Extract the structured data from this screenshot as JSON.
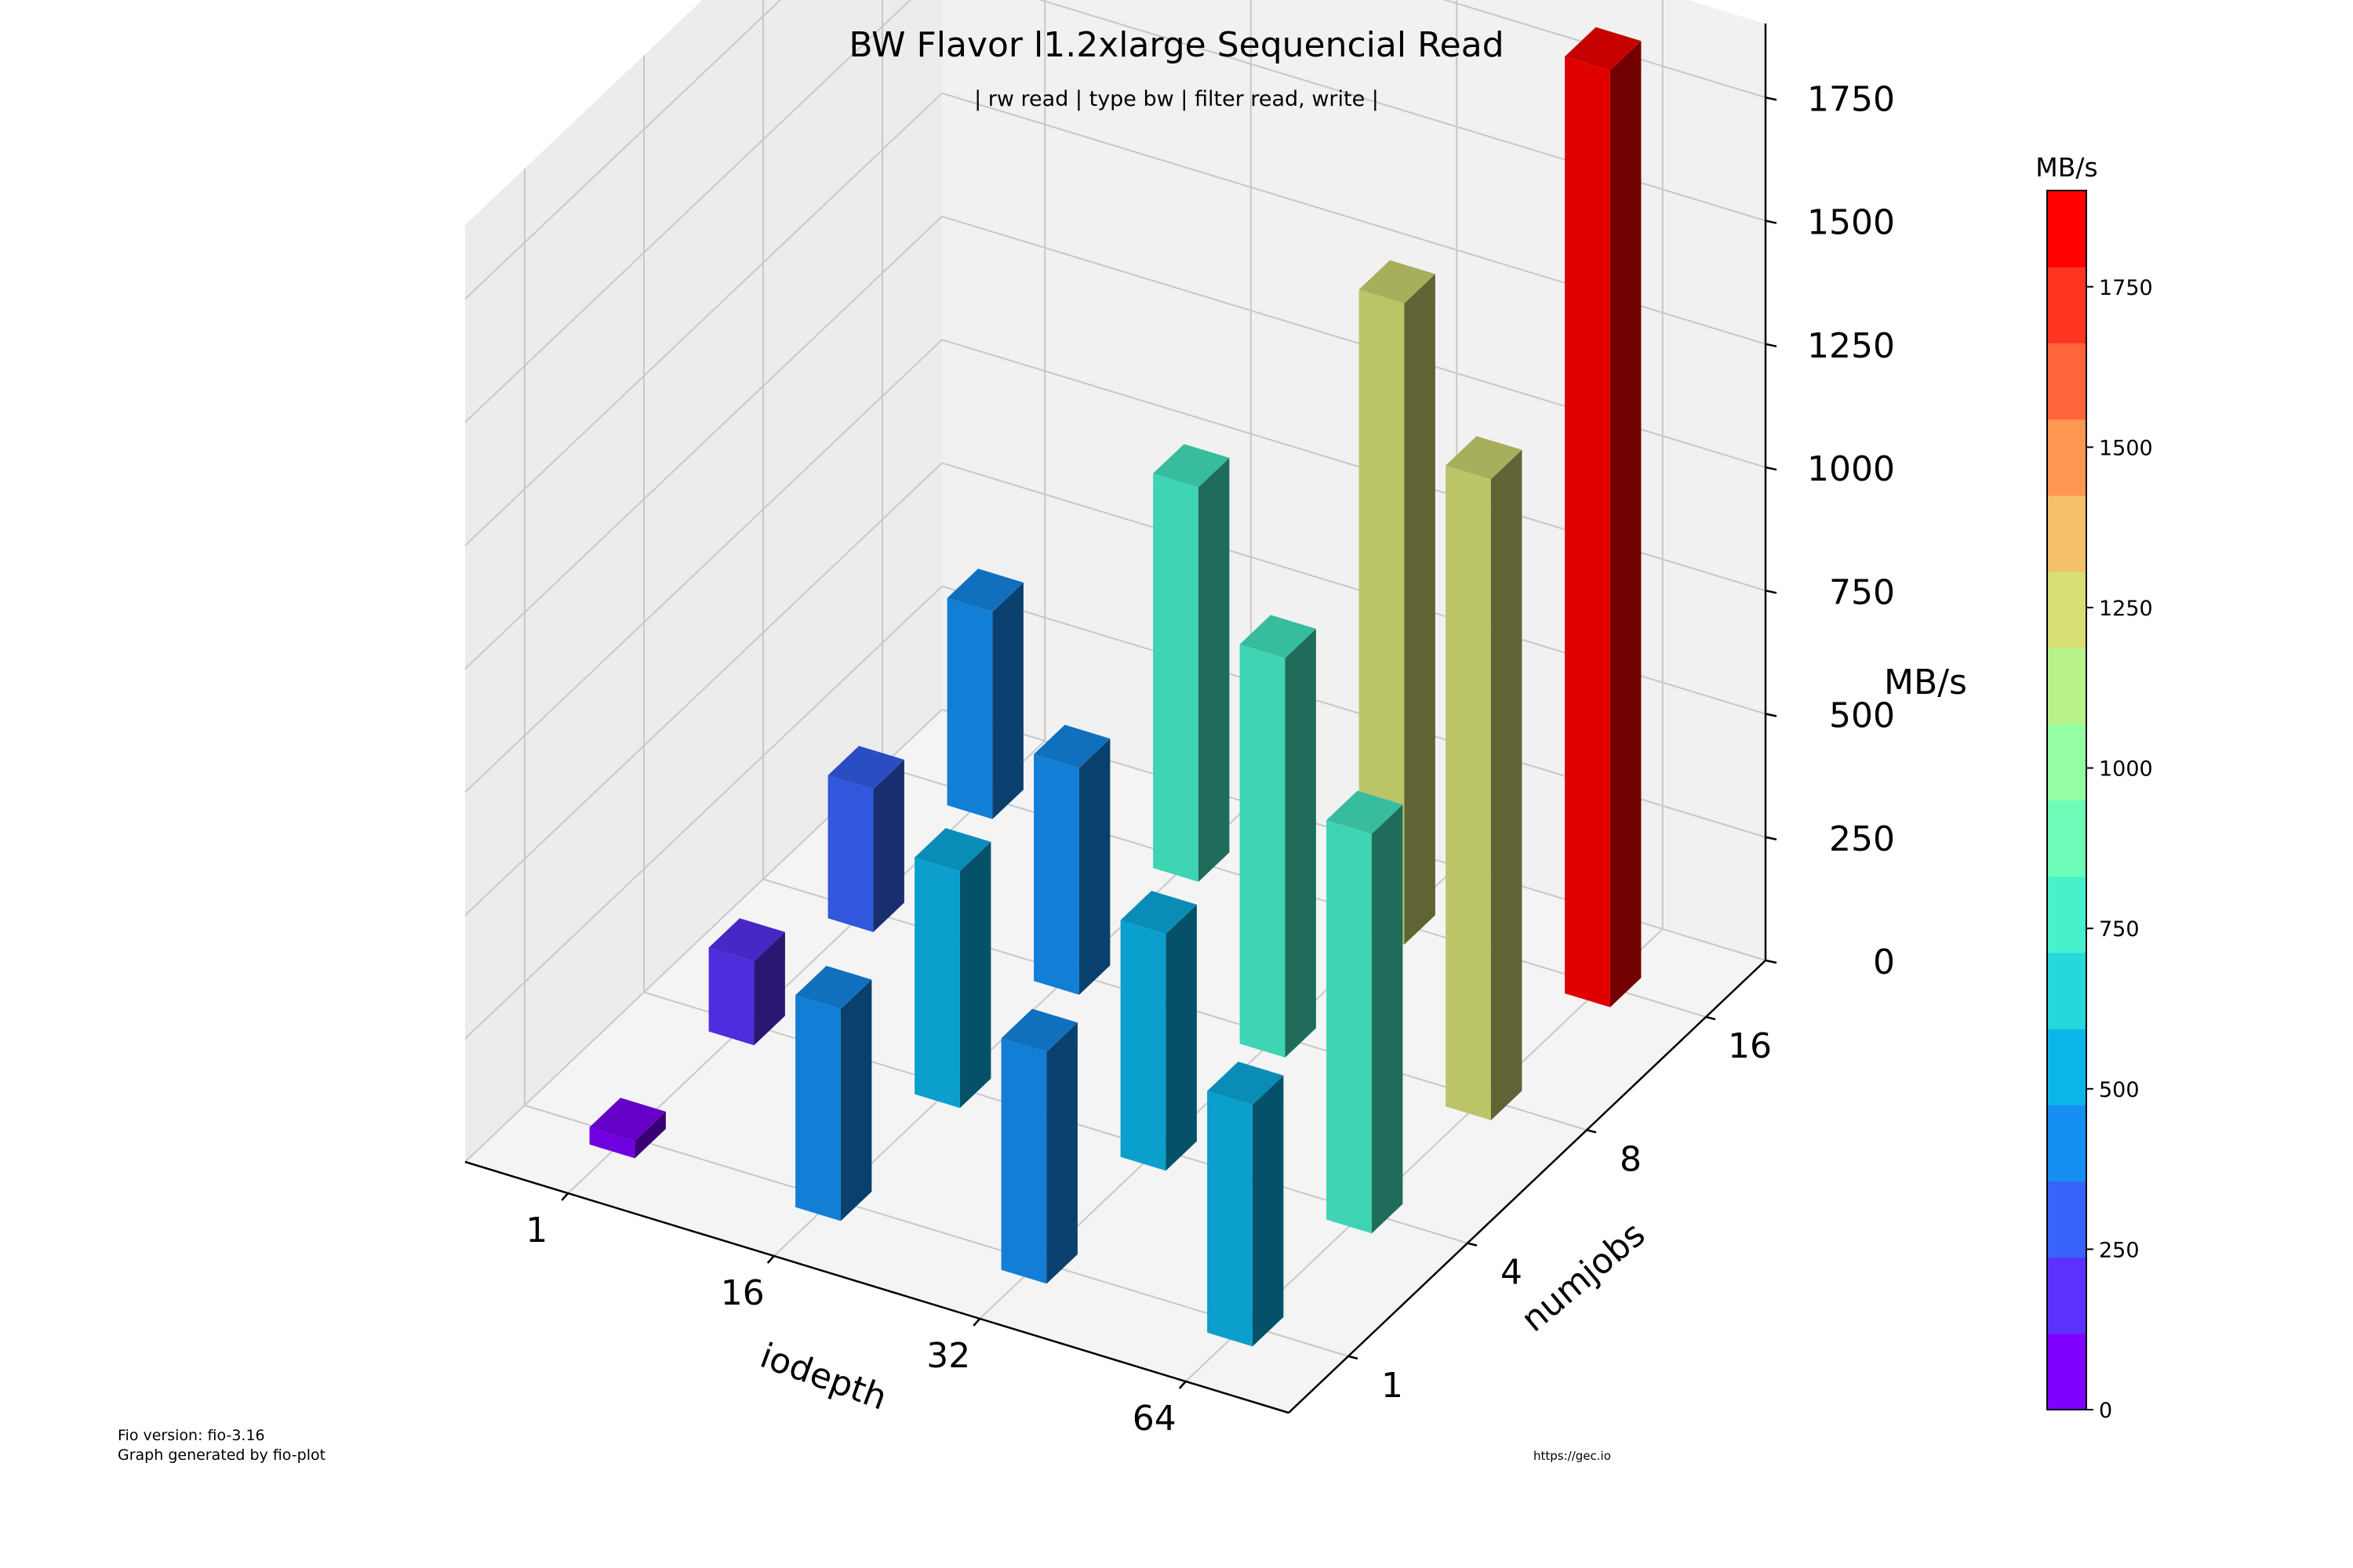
{
  "chart_data": {
    "type": "bar3d",
    "title": "BW Flavor l1.2xlarge Sequencial Read",
    "subtitle": "| rw read | type bw | filter read, write |",
    "xlabel": "iodepth",
    "ylabel": "numjobs",
    "zlabel": "MB/s",
    "x_categories": [
      "1",
      "16",
      "32",
      "64"
    ],
    "y_categories": [
      "1",
      "4",
      "8",
      "16"
    ],
    "z_ticks": [
      "0",
      "250",
      "500",
      "750",
      "1000",
      "1250",
      "1500",
      "1750"
    ],
    "zlim": [
      0,
      1900
    ],
    "values": [
      {
        "iodepth": "1",
        "numjobs": "1",
        "value": 35
      },
      {
        "iodepth": "1",
        "numjobs": "4",
        "value": 170
      },
      {
        "iodepth": "1",
        "numjobs": "8",
        "value": 290
      },
      {
        "iodepth": "1",
        "numjobs": "16",
        "value": 420
      },
      {
        "iodepth": "16",
        "numjobs": "1",
        "value": 430
      },
      {
        "iodepth": "16",
        "numjobs": "4",
        "value": 480
      },
      {
        "iodepth": "16",
        "numjobs": "8",
        "value": 460
      },
      {
        "iodepth": "16",
        "numjobs": "16",
        "value": 800
      },
      {
        "iodepth": "32",
        "numjobs": "1",
        "value": 470
      },
      {
        "iodepth": "32",
        "numjobs": "4",
        "value": 480
      },
      {
        "iodepth": "32",
        "numjobs": "8",
        "value": 810
      },
      {
        "iodepth": "32",
        "numjobs": "16",
        "value": 1300
      },
      {
        "iodepth": "64",
        "numjobs": "1",
        "value": 490
      },
      {
        "iodepth": "64",
        "numjobs": "4",
        "value": 810
      },
      {
        "iodepth": "64",
        "numjobs": "8",
        "value": 1300
      },
      {
        "iodepth": "64",
        "numjobs": "16",
        "value": 1900
      }
    ],
    "colorbar": {
      "label": "MB/s",
      "ticks": [
        "0",
        "250",
        "500",
        "750",
        "1000",
        "1250",
        "1500",
        "1750"
      ],
      "range": [
        0,
        1900
      ],
      "colors": [
        "#8000ff",
        "#5b32fd",
        "#3763fa",
        "#168ff3",
        "#0cb5e9",
        "#26d8dc",
        "#48f1cb",
        "#6dfdb8",
        "#93fea2",
        "#b8f38a",
        "#d6df76",
        "#f4c06c",
        "#ff9651",
        "#ff6539",
        "#ff3521",
        "#ff0000"
      ]
    },
    "grid": true
  },
  "footer": {
    "fio_version": "Fio version: fio-3.16",
    "generated_by": "Graph generated by fio-plot",
    "url": "https://gec.io"
  }
}
